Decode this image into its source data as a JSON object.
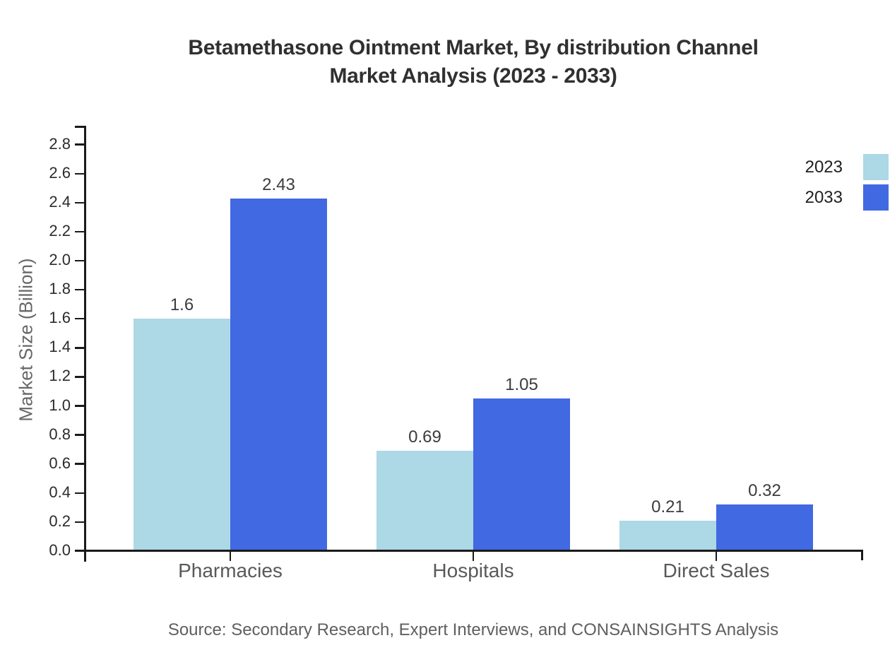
{
  "title": {
    "line1": "Betamethasone Ointment Market, By distribution Channel",
    "line2": "Market Analysis (2023 - 2033)"
  },
  "source": "Source: Secondary Research, Expert Interviews, and CONSAINSIGHTS Analysis",
  "chart_data": {
    "type": "bar",
    "title": "Betamethasone Ointment Market, By distribution Channel Market Analysis (2023 - 2033)",
    "categories": [
      "Pharmacies",
      "Hospitals",
      "Direct Sales"
    ],
    "series": [
      {
        "name": "2023",
        "color": "#ADD8E6",
        "values": [
          1.6,
          0.69,
          0.21
        ]
      },
      {
        "name": "2033",
        "color": "#4169E1",
        "values": [
          2.43,
          1.05,
          0.32
        ]
      }
    ],
    "xlabel": "",
    "ylabel": "Market Size (Billion)",
    "ylim": [
      0,
      2.92
    ],
    "ytick_step": 0.2,
    "ytick_max": 2.8,
    "grid": false,
    "legend_position": "top-right",
    "value_labels_shown": true
  }
}
